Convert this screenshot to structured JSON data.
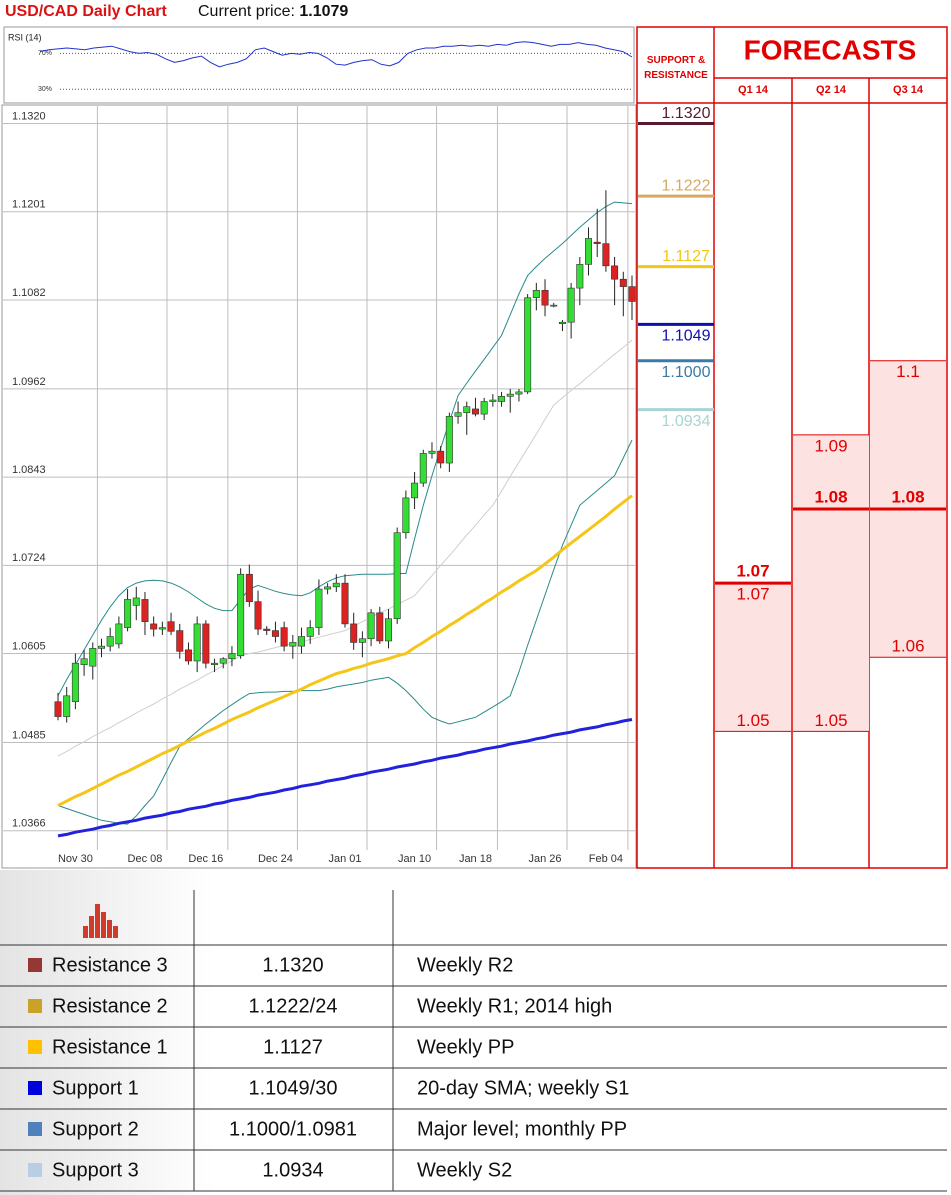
{
  "header": {
    "title": "USD/CAD Daily Chart",
    "current_price_label": "Current price:",
    "current_price": "1.1079"
  },
  "chart_data": [
    {
      "type": "candlestick",
      "categories": [
        null,
        null,
        "Nov 30",
        null,
        null,
        null,
        null,
        null,
        null,
        null,
        "Dec 08",
        null,
        null,
        null,
        null,
        null,
        null,
        "Dec 16",
        null,
        null,
        null,
        null,
        null,
        null,
        null,
        "Dec 24",
        null,
        null,
        null,
        null,
        null,
        null,
        null,
        "Jan 01",
        null,
        null,
        null,
        null,
        null,
        null,
        null,
        "Jan 10",
        null,
        null,
        null,
        null,
        null,
        null,
        "Jan 18",
        null,
        null,
        null,
        null,
        null,
        null,
        null,
        "Jan 26",
        null,
        null,
        null,
        null,
        null,
        null,
        "Feb 04",
        null,
        null,
        null
      ],
      "open": [
        1.054,
        1.052,
        1.054,
        1.059,
        1.0588,
        1.0612,
        1.0615,
        1.0618,
        1.064,
        1.067,
        1.0678,
        1.0645,
        1.0638,
        1.0648,
        1.0636,
        1.061,
        1.0595,
        1.0645,
        1.059,
        1.0592,
        1.0598,
        1.0602,
        1.0712,
        1.0675,
        1.0638,
        1.0636,
        1.064,
        1.0615,
        1.0615,
        1.0628,
        1.064,
        1.0692,
        1.0695,
        1.07,
        1.0645,
        1.062,
        1.0625,
        1.066,
        1.0622,
        1.0652,
        1.0768,
        1.0815,
        1.0835,
        1.0875,
        1.0878,
        1.0862,
        1.0925,
        1.093,
        1.0935,
        1.0928,
        1.0945,
        1.0945,
        1.0952,
        1.0955,
        1.0958,
        1.1085,
        1.1095,
        1.1075,
        1.105,
        1.1052,
        1.1098,
        1.113,
        1.116,
        1.1158,
        1.1128,
        1.111,
        1.11
      ],
      "high": [
        1.0552,
        1.056,
        1.0605,
        1.061,
        1.062,
        1.0625,
        1.064,
        1.0655,
        1.0692,
        1.0695,
        1.0688,
        1.0655,
        1.0648,
        1.066,
        1.0645,
        1.062,
        1.0655,
        1.065,
        1.0598,
        1.06,
        1.0615,
        1.072,
        1.0725,
        1.069,
        1.0642,
        1.0648,
        1.0648,
        1.063,
        1.064,
        1.065,
        1.0705,
        1.07,
        1.0712,
        1.0712,
        1.066,
        1.0635,
        1.0665,
        1.0668,
        1.0665,
        1.0775,
        1.0825,
        1.085,
        1.088,
        1.089,
        1.0885,
        1.093,
        1.0945,
        1.0945,
        1.095,
        1.095,
        1.0955,
        1.0958,
        1.0962,
        1.0962,
        1.109,
        1.1105,
        1.111,
        1.1078,
        1.1055,
        1.1105,
        1.114,
        1.118,
        1.1205,
        1.123,
        1.114,
        1.112,
        1.1115
      ],
      "low": [
        1.0515,
        1.0512,
        1.053,
        1.0575,
        1.057,
        1.06,
        1.0608,
        1.0612,
        1.0635,
        1.065,
        1.063,
        1.0628,
        1.063,
        1.063,
        1.0598,
        1.059,
        1.058,
        1.0585,
        1.058,
        1.0585,
        1.0588,
        1.0598,
        1.0668,
        1.063,
        1.063,
        1.062,
        1.0608,
        1.0598,
        1.0605,
        1.0618,
        1.063,
        1.0685,
        1.0688,
        1.064,
        1.061,
        1.06,
        1.0615,
        1.0618,
        1.0612,
        1.0645,
        1.076,
        1.08,
        1.083,
        1.0868,
        1.0855,
        1.085,
        1.0915,
        1.09,
        1.0925,
        1.092,
        1.0938,
        1.0938,
        1.093,
        1.0945,
        1.0955,
        1.1068,
        1.106,
        1.1072,
        1.104,
        1.103,
        1.1075,
        1.1115,
        1.114,
        1.112,
        1.1075,
        1.106,
        1.1055
      ],
      "close": [
        1.052,
        1.0548,
        1.0592,
        1.0598,
        1.0612,
        1.0615,
        1.0628,
        1.0645,
        1.0678,
        1.068,
        1.0648,
        1.0638,
        1.064,
        1.0635,
        1.0608,
        1.0595,
        1.0645,
        1.0592,
        1.0592,
        1.0598,
        1.0605,
        1.0712,
        1.0675,
        1.0638,
        1.0636,
        1.0628,
        1.0615,
        1.062,
        1.0628,
        1.064,
        1.0692,
        1.0695,
        1.07,
        1.0645,
        1.062,
        1.0625,
        1.066,
        1.0622,
        1.0652,
        1.0768,
        1.0815,
        1.0835,
        1.0875,
        1.0878,
        1.0862,
        1.0925,
        1.093,
        1.0938,
        1.0928,
        1.0945,
        1.0947,
        1.0952,
        1.0955,
        1.0958,
        1.1085,
        1.1095,
        1.1075,
        1.1075,
        1.1052,
        1.1098,
        1.113,
        1.1165,
        1.1158,
        1.1128,
        1.111,
        1.11,
        1.108
      ],
      "up_color": "#33dd33",
      "down_color": "#dd2222",
      "overlays": [
        {
          "color": "#cfcfcf",
          "width": 1,
          "values": [
            1.0467,
            1.0473,
            1.048,
            1.0486,
            1.0493,
            1.0499,
            1.0505,
            1.0512,
            1.0518,
            1.0525,
            1.0531,
            1.0537,
            1.0544,
            1.055,
            1.0557,
            1.0563,
            1.0569,
            1.0576,
            1.0582,
            1.0589,
            1.0595,
            1.0602,
            1.0605,
            1.0607,
            1.061,
            1.0613,
            1.0616,
            1.0619,
            1.0621,
            1.0624,
            1.0627,
            1.063,
            1.0633,
            1.0636,
            1.0642,
            1.0648,
            1.0654,
            1.066,
            1.0665,
            1.0671,
            1.0677,
            1.0683,
            1.0697,
            1.071,
            1.0724,
            1.0737,
            1.0751,
            1.0765,
            1.0778,
            1.0792,
            1.0805,
            1.0824,
            1.0844,
            1.0863,
            1.0882,
            1.0901,
            1.0921,
            1.094,
            1.095,
            1.096,
            1.0969,
            1.0979,
            1.0989,
            1.0999,
            1.1009,
            1.1018,
            1.1028
          ]
        },
        {
          "color": "#2a8a8a",
          "width": 1,
          "values": [
            1.0548,
            1.057,
            1.059,
            1.061,
            1.063,
            1.065,
            1.0668,
            1.0683,
            1.0694,
            1.07,
            1.0703,
            1.0704,
            1.0703,
            1.07,
            1.0695,
            1.0688,
            1.068,
            1.0672,
            1.0666,
            1.0663,
            1.0663,
            1.0678,
            1.0692,
            1.0697,
            1.0693,
            1.0689,
            1.0686,
            1.0684,
            1.0683,
            1.0687,
            1.0695,
            1.0702,
            1.0707,
            1.071,
            1.0711,
            1.0712,
            1.0712,
            1.0712,
            1.0712,
            1.0713,
            1.0713,
            1.076,
            1.0805,
            1.0845,
            1.0882,
            1.0918,
            1.0953,
            1.097,
            1.0986,
            1.1002,
            1.1018,
            1.1034,
            1.1062,
            1.109,
            1.1115,
            1.1127,
            1.1138,
            1.1148,
            1.1158,
            1.1169,
            1.118,
            1.119,
            1.12,
            1.1208,
            1.1214,
            1.1213,
            1.1212
          ]
        },
        {
          "color": "#2a8a8a",
          "width": 1,
          "values": [
            1.04,
            1.0396,
            1.0392,
            1.0388,
            1.0384,
            1.038,
            1.0378,
            1.0376,
            1.0375,
            1.0386,
            1.04,
            1.0413,
            1.0435,
            1.0458,
            1.048,
            1.049,
            1.05,
            1.051,
            1.0519,
            1.0528,
            1.0536,
            1.0544,
            1.0551,
            1.0552,
            1.0553,
            1.0553,
            1.0554,
            1.0554,
            1.0555,
            1.0555,
            1.0555,
            1.0557,
            1.056,
            1.0562,
            1.0564,
            1.0566,
            1.0569,
            1.0571,
            1.0573,
            1.0565,
            1.0555,
            1.0543,
            1.053,
            1.0519,
            1.0514,
            1.051,
            1.0513,
            1.0516,
            1.0519,
            1.0526,
            1.0533,
            1.054,
            1.0548,
            1.058,
            1.0616,
            1.065,
            1.0684,
            1.0718,
            1.0751,
            1.0778,
            1.0805,
            1.0815,
            1.0825,
            1.0835,
            1.0845,
            1.0869,
            1.0893
          ]
        },
        {
          "color": "#f5c518",
          "width": 3,
          "values": [
            1.04,
            1.0406,
            1.0412,
            1.0417,
            1.0423,
            1.0429,
            1.0435,
            1.0441,
            1.0446,
            1.0452,
            1.0458,
            1.0464,
            1.047,
            1.0475,
            1.0481,
            1.0487,
            1.0493,
            1.0499,
            1.0504,
            1.051,
            1.0516,
            1.0521,
            1.0526,
            1.0532,
            1.0537,
            1.0542,
            1.0547,
            1.0552,
            1.0557,
            1.0563,
            1.0568,
            1.0573,
            1.0578,
            1.0581,
            1.0585,
            1.0588,
            1.0592,
            1.0595,
            1.0598,
            1.0602,
            1.0605,
            1.0613,
            1.062,
            1.0628,
            1.0635,
            1.0643,
            1.065,
            1.0658,
            1.0665,
            1.0673,
            1.068,
            1.0688,
            1.0695,
            1.0703,
            1.071,
            1.0717,
            1.0726,
            1.0735,
            1.0745,
            1.0754,
            1.0763,
            1.0772,
            1.0781,
            1.079,
            1.08,
            1.0809,
            1.0818
          ]
        },
        {
          "color": "#2222dd",
          "width": 3,
          "values": [
            1.0359,
            1.0361,
            1.0364,
            1.0366,
            1.0368,
            1.0371,
            1.0373,
            1.0376,
            1.0378,
            1.038,
            1.0383,
            1.0385,
            1.0387,
            1.039,
            1.0392,
            1.0395,
            1.0397,
            1.0399,
            1.0402,
            1.0404,
            1.0407,
            1.0409,
            1.0411,
            1.0414,
            1.0416,
            1.0418,
            1.0421,
            1.0423,
            1.0426,
            1.0428,
            1.043,
            1.0433,
            1.0435,
            1.0437,
            1.044,
            1.0442,
            1.0445,
            1.0447,
            1.0449,
            1.0452,
            1.0454,
            1.0456,
            1.0459,
            1.0461,
            1.0464,
            1.0466,
            1.0468,
            1.0471,
            1.0473,
            1.0476,
            1.0478,
            1.048,
            1.0483,
            1.0485,
            1.0487,
            1.049,
            1.0492,
            1.0495,
            1.0497,
            1.0499,
            1.0502,
            1.0504,
            1.0506,
            1.0509,
            1.0511,
            1.0514,
            1.0516
          ]
        }
      ],
      "ylim": [
        1.034,
        1.1345
      ],
      "yticks": [
        1.0366,
        1.0485,
        1.0605,
        1.0724,
        1.0843,
        1.0962,
        1.1082,
        1.1201,
        {
          "value": 1.132,
          "label": "1.1320"
        }
      ],
      "grid": true
    },
    {
      "type": "line",
      "title": "RSI (14)",
      "color": "#2233cc",
      "values": [
        72,
        74,
        75,
        76,
        75,
        74,
        76,
        77,
        78,
        75,
        72,
        70,
        71,
        69,
        64,
        60,
        62,
        65,
        67,
        60,
        55,
        58,
        60,
        64,
        74,
        76,
        72,
        68,
        70,
        69,
        71,
        70,
        65,
        58,
        57,
        60,
        62,
        63,
        58,
        56,
        60,
        70,
        74,
        76,
        76,
        78,
        78,
        79,
        78,
        79,
        78,
        80,
        79,
        82,
        83,
        82,
        80,
        78,
        80,
        80,
        82,
        80,
        79,
        76,
        74,
        72,
        66
      ],
      "ylim": [
        18,
        95
      ],
      "yticks": [
        {
          "value": 70,
          "label": "70%"
        },
        {
          "value": 30,
          "label": "30%"
        }
      ]
    }
  ],
  "support_resistance": {
    "title": "SUPPORT & RESISTANCE",
    "values": [
      1.132,
      1.1222,
      1.1127,
      1.1049,
      1.1,
      1.0934
    ],
    "value_labels": [
      "1.1320",
      "1.1222",
      "1.1127",
      "1.1049",
      "1.1000",
      "1.0934"
    ],
    "colors": [
      "#5a1a2e",
      "#d9a860",
      "#f5c518",
      "#1010b0",
      "#3a7aa8",
      "#a8d4d4"
    ]
  },
  "forecasts": {
    "title": "FORECASTS",
    "color": "#e00000",
    "quarters": [
      {
        "label": "Q1 14",
        "forecast": 1.07,
        "high": 1.07,
        "low": 1.05
      },
      {
        "label": "Q2 14",
        "forecast": 1.08,
        "high": 1.09,
        "low": 1.05
      },
      {
        "label": "Q3 14",
        "forecast": 1.08,
        "high": 1.1,
        "low": 1.06
      }
    ]
  },
  "table": {
    "rows": [
      {
        "color": "#953735",
        "name": "Resistance 3",
        "level": "1.1320",
        "note": "Weekly R2"
      },
      {
        "color": "#c9a227",
        "name": "Resistance 2",
        "level": "1.1222/24",
        "note": "Weekly R1; 2014 high"
      },
      {
        "color": "#ffc000",
        "name": "Resistance 1",
        "level": "1.1127",
        "note": "Weekly PP"
      },
      {
        "color": "#0000dd",
        "name": "Support 1",
        "level": "1.1049/30",
        "note": "20-day SMA; weekly S1"
      },
      {
        "color": "#4f81bd",
        "name": "Support 2",
        "level": "1.1000/1.0981",
        "note": "Major level; monthly PP"
      },
      {
        "color": "#b9cde5",
        "name": "Support 3",
        "level": "1.0934",
        "note": "Weekly S2"
      }
    ]
  }
}
